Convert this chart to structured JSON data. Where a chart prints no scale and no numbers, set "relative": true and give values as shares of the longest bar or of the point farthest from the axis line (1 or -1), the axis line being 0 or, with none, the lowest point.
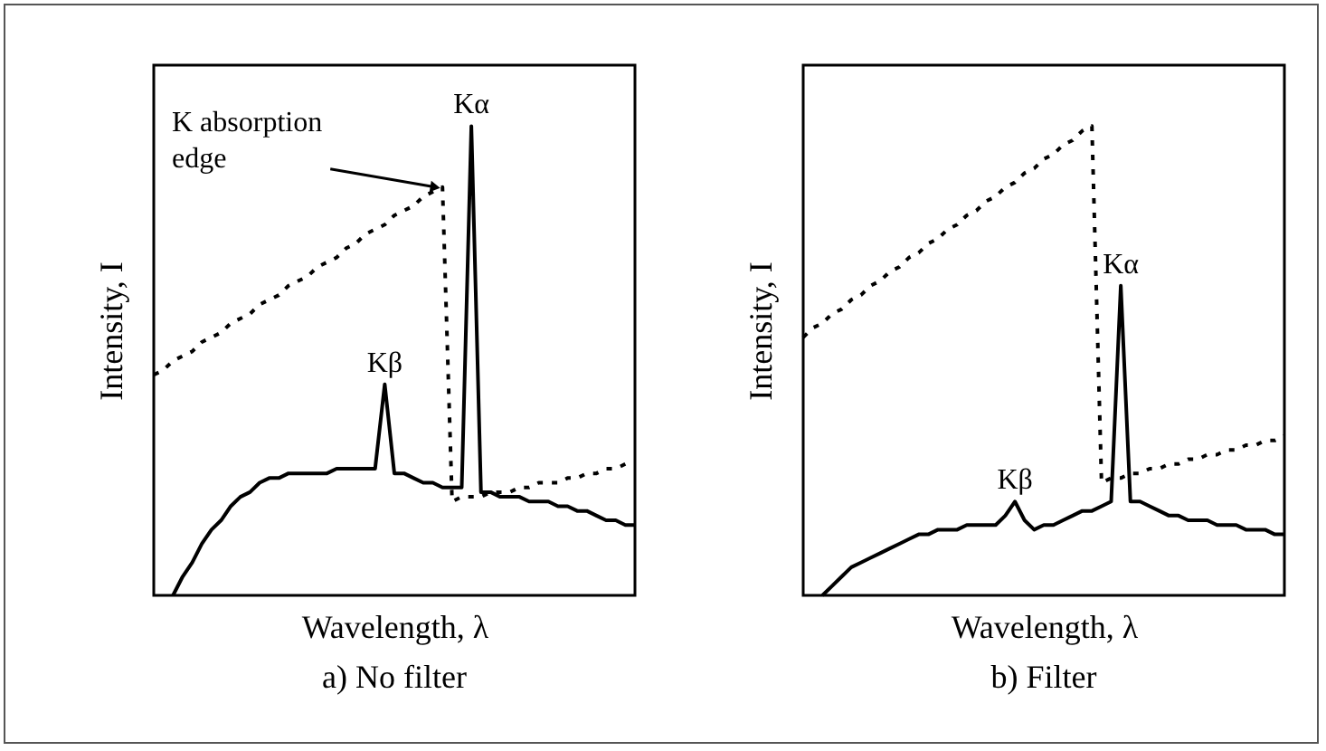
{
  "chart_data": [
    {
      "type": "line",
      "title": "a) No filter",
      "xlabel": "Wavelength, λ",
      "ylabel": "Intensity, I",
      "relative": true,
      "categories": [
        null,
        null,
        null,
        null,
        null,
        null,
        null,
        null,
        null,
        null,
        null,
        null,
        null,
        null,
        null,
        null,
        null,
        null,
        null,
        null,
        null,
        null,
        null,
        null,
        null,
        null,
        null,
        null,
        null,
        null,
        null,
        null,
        null,
        null,
        null,
        null,
        null,
        null,
        null,
        null,
        null,
        null,
        null,
        null,
        null,
        null,
        null,
        null,
        null,
        null,
        null
      ],
      "series": [
        {
          "color": "#000000",
          "line_style": "solid",
          "values": [
            null,
            null,
            0,
            0.04,
            0.07,
            0.11,
            0.14,
            0.16,
            0.19,
            0.21,
            0.22,
            0.24,
            0.25,
            0.25,
            0.26,
            0.26,
            0.26,
            0.26,
            0.26,
            0.27,
            0.27,
            0.27,
            0.27,
            0.27,
            0.45,
            0.26,
            0.26,
            0.25,
            0.24,
            0.24,
            0.23,
            0.23,
            0.23,
            1,
            0.22,
            0.22,
            0.21,
            0.21,
            0.21,
            0.2,
            0.2,
            0.2,
            0.19,
            0.19,
            0.18,
            0.18,
            0.17,
            0.16,
            0.16,
            0.15,
            0.15
          ]
        },
        {
          "color": "#000000",
          "line_style": "dotted",
          "values": [
            0.47,
            0.48,
            0.5,
            0.51,
            0.52,
            0.54,
            0.55,
            0.56,
            0.58,
            0.59,
            0.6,
            0.62,
            0.63,
            0.64,
            0.66,
            0.67,
            0.68,
            0.7,
            0.71,
            0.72,
            0.74,
            0.75,
            0.77,
            0.78,
            0.79,
            0.81,
            0.82,
            0.83,
            0.85,
            0.86,
            0.87,
            0.2,
            0.21,
            0.21,
            0.21,
            0.22,
            0.22,
            0.22,
            0.23,
            0.23,
            0.24,
            0.24,
            0.24,
            0.25,
            0.25,
            0.26,
            0.26,
            0.27,
            0.27,
            0.28,
            0.28
          ]
        }
      ],
      "annotations": [
        {
          "text": "Kβ",
          "y": 0.45
        },
        {
          "text": "Kα",
          "y": 1
        },
        "K absorption edge"
      ]
    },
    {
      "type": "line",
      "title": "b) Filter",
      "xlabel": "Wavelength, λ",
      "ylabel": "Intensity, I",
      "relative": true,
      "categories": [
        null,
        null,
        null,
        null,
        null,
        null,
        null,
        null,
        null,
        null,
        null,
        null,
        null,
        null,
        null,
        null,
        null,
        null,
        null,
        null,
        null,
        null,
        null,
        null,
        null,
        null,
        null,
        null,
        null,
        null,
        null,
        null,
        null,
        null,
        null,
        null,
        null,
        null,
        null,
        null,
        null,
        null,
        null,
        null,
        null,
        null,
        null,
        null,
        null,
        null,
        null
      ],
      "series": [
        {
          "color": "#000000",
          "line_style": "solid",
          "values": [
            null,
            null,
            0,
            0.02,
            0.04,
            0.06,
            0.07,
            0.08,
            0.09,
            0.1,
            0.11,
            0.12,
            0.13,
            0.13,
            0.14,
            0.14,
            0.14,
            0.15,
            0.15,
            0.15,
            0.15,
            0.17,
            0.2,
            0.16,
            0.14,
            0.15,
            0.15,
            0.16,
            0.17,
            0.18,
            0.18,
            0.19,
            0.2,
            0.66,
            0.2,
            0.2,
            0.19,
            0.18,
            0.17,
            0.17,
            0.16,
            0.16,
            0.16,
            0.15,
            0.15,
            0.15,
            0.14,
            0.14,
            0.14,
            0.13,
            0.13
          ]
        },
        {
          "color": "#000000",
          "line_style": "dotted",
          "values": [
            0.55,
            0.57,
            0.58,
            0.6,
            0.61,
            0.63,
            0.64,
            0.66,
            0.67,
            0.69,
            0.7,
            0.72,
            0.73,
            0.75,
            0.76,
            0.78,
            0.79,
            0.81,
            0.82,
            0.84,
            0.85,
            0.87,
            0.88,
            0.9,
            0.91,
            0.93,
            0.94,
            0.96,
            0.97,
            0.99,
            1,
            0.24,
            0.25,
            0.25,
            0.26,
            0.26,
            0.27,
            0.27,
            0.28,
            0.28,
            0.29,
            0.29,
            0.3,
            0.3,
            0.31,
            0.31,
            0.32,
            0.32,
            0.33,
            0.33,
            0.34
          ]
        }
      ],
      "annotations": [
        {
          "text": "Kβ",
          "y": 0.2
        },
        {
          "text": "Kα",
          "y": 0.66
        }
      ]
    }
  ]
}
